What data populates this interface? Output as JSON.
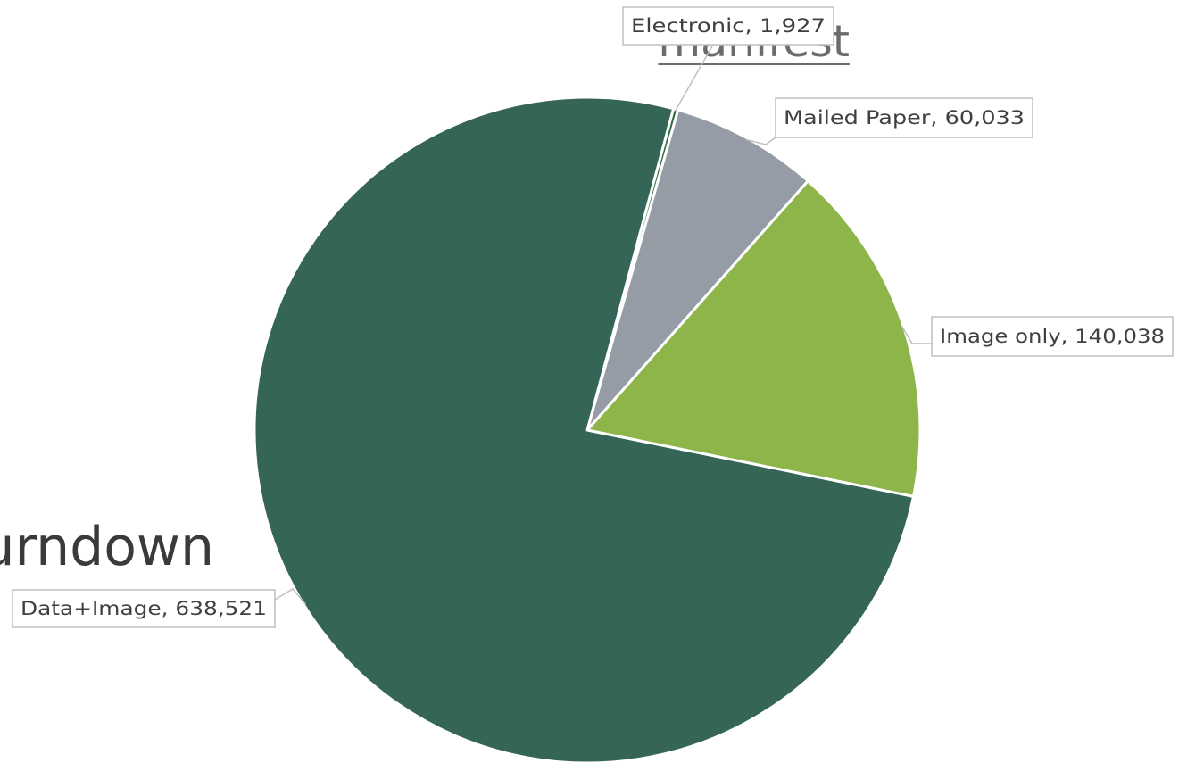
{
  "background": {
    "link_text": "manifest",
    "heading_fragment": "urndown"
  },
  "colors": {
    "text": "#404040",
    "callout_border": "#bfbfbf",
    "link": "#6b6b6b",
    "slice_separator": "#ffffff"
  },
  "chart_data": {
    "type": "pie",
    "title": "",
    "start_angle_deg": 15,
    "direction": "clockwise",
    "slices": [
      {
        "label": "Electronic",
        "value": 1927,
        "display_value": "1,927",
        "color": "#2f6b3c"
      },
      {
        "label": "Mailed Paper",
        "value": 60033,
        "display_value": "60,033",
        "color": "#969ca6"
      },
      {
        "label": "Image only",
        "value": 140038,
        "display_value": "140,038",
        "color": "#8db54a"
      },
      {
        "label": "Data+Image",
        "value": 638521,
        "display_value": "638,521",
        "color": "#356557"
      }
    ],
    "data_labels": "category, value",
    "legend": "none"
  }
}
